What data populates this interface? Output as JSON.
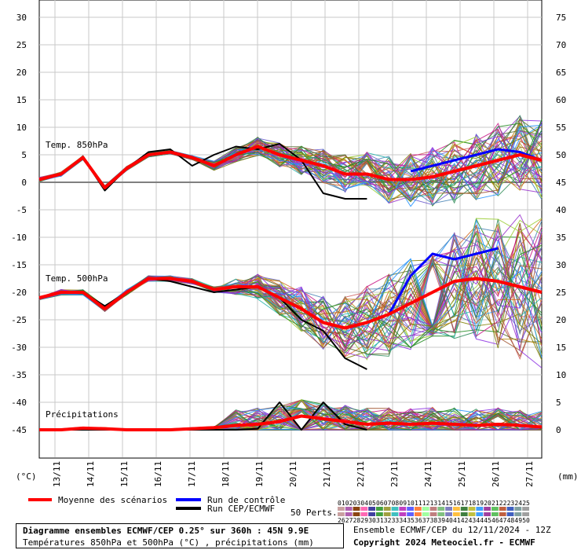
{
  "chart_data": {
    "type": "line",
    "title": "Diagramme ensembles ECMWF/CEP 0.25° sur 360h : 45N 9.9E",
    "subtitle": "Températures 850hPa et 500hPa (°C) , précipitations (mm)",
    "left_axis": {
      "label": "(°C)",
      "ticks": [
        30,
        25,
        20,
        15,
        10,
        5,
        0,
        -5,
        -10,
        -15,
        -20,
        -25,
        -30,
        -35,
        -40,
        -45
      ],
      "range": [
        -45,
        30
      ]
    },
    "right_axis": {
      "label": "(mm)",
      "ticks": [
        75,
        70,
        65,
        60,
        55,
        50,
        45,
        40,
        35,
        30,
        25,
        20,
        15,
        10,
        5,
        0
      ],
      "range": [
        0,
        75
      ]
    },
    "x_labels": [
      "13/11",
      "14/11",
      "15/11",
      "16/11",
      "17/11",
      "18/11",
      "19/11",
      "20/11",
      "21/11",
      "22/11",
      "23/11",
      "24/11",
      "25/11",
      "26/11",
      "27/11"
    ],
    "panels": [
      {
        "name": "Temp. 850hPa"
      },
      {
        "name": "Temp. 500hPa"
      },
      {
        "name": "Précipitations"
      }
    ],
    "series": [
      {
        "name": "Moyenne des scénarios",
        "color": "#ff0000",
        "t850": [
          0.5,
          1.5,
          4.5,
          -1,
          2.5,
          5,
          5.5,
          4.5,
          3,
          5,
          6.5,
          5,
          4,
          3,
          1.5,
          1.5,
          0.5,
          0.5,
          1,
          2,
          3,
          4,
          5,
          4
        ],
        "t500": [
          -21,
          -20,
          -20,
          -23,
          -20,
          -17.5,
          -17.5,
          -18,
          -19.5,
          -19,
          -19,
          -21,
          -23,
          -25.5,
          -26.5,
          -25.5,
          -24,
          -22,
          -20,
          -18,
          -17.5,
          -18,
          -19,
          -20
        ],
        "precip": [
          0,
          0,
          0.3,
          0.2,
          0,
          0,
          0,
          0.2,
          0.4,
          0.8,
          1,
          1.5,
          2.5,
          2,
          1.5,
          1,
          1.2,
          1,
          1.2,
          1,
          0.8,
          1,
          0.8,
          0.5
        ]
      },
      {
        "name": "Run de contrôle",
        "color": "#0000ff",
        "t850": [
          null,
          null,
          null,
          null,
          null,
          null,
          null,
          null,
          null,
          null,
          null,
          null,
          null,
          null,
          null,
          null,
          null,
          2,
          3,
          4,
          5,
          6,
          5.5,
          4
        ],
        "t500": [
          null,
          null,
          null,
          null,
          null,
          null,
          null,
          null,
          null,
          null,
          null,
          null,
          null,
          null,
          null,
          null,
          -24,
          -17,
          -13,
          -14,
          -13,
          -12,
          null,
          null
        ],
        "precip": []
      },
      {
        "name": "Run CEP/ECMWF",
        "color": "#000000",
        "t850": [
          0.5,
          1.5,
          4.5,
          -1.5,
          2.5,
          5.5,
          6,
          3,
          5,
          6.5,
          6,
          7,
          4,
          -2,
          -3,
          -3
        ],
        "t500": [
          -21,
          -20,
          -20,
          -22.5,
          -20,
          -17.5,
          -18,
          -19,
          -20,
          -19.5,
          -19,
          -21,
          -25,
          -27,
          -32,
          -34
        ],
        "precip": [
          0,
          0,
          0,
          0,
          0,
          0,
          0,
          0,
          0,
          0,
          0.2,
          5,
          0,
          5,
          1,
          0
        ]
      }
    ],
    "ensemble_members": 50,
    "perts_label": "50 Perts.",
    "perts_row1": [
      "01",
      "02",
      "03",
      "04",
      "05",
      "06",
      "07",
      "08",
      "09",
      "10",
      "11",
      "12",
      "13",
      "14",
      "15",
      "16",
      "17",
      "18",
      "19",
      "20",
      "21",
      "22",
      "23",
      "24",
      "25"
    ],
    "perts_row2": [
      "26",
      "27",
      "28",
      "29",
      "30",
      "31",
      "32",
      "33",
      "34",
      "35",
      "36",
      "37",
      "38",
      "39",
      "40",
      "41",
      "42",
      "43",
      "44",
      "45",
      "46",
      "47",
      "48",
      "49",
      "50"
    ],
    "footer_right": "Ensemble ECMWF/CEP du 12/11/2024 - 12Z",
    "copyright": "Copyright 2024 Meteociel.fr - ECMWF"
  }
}
